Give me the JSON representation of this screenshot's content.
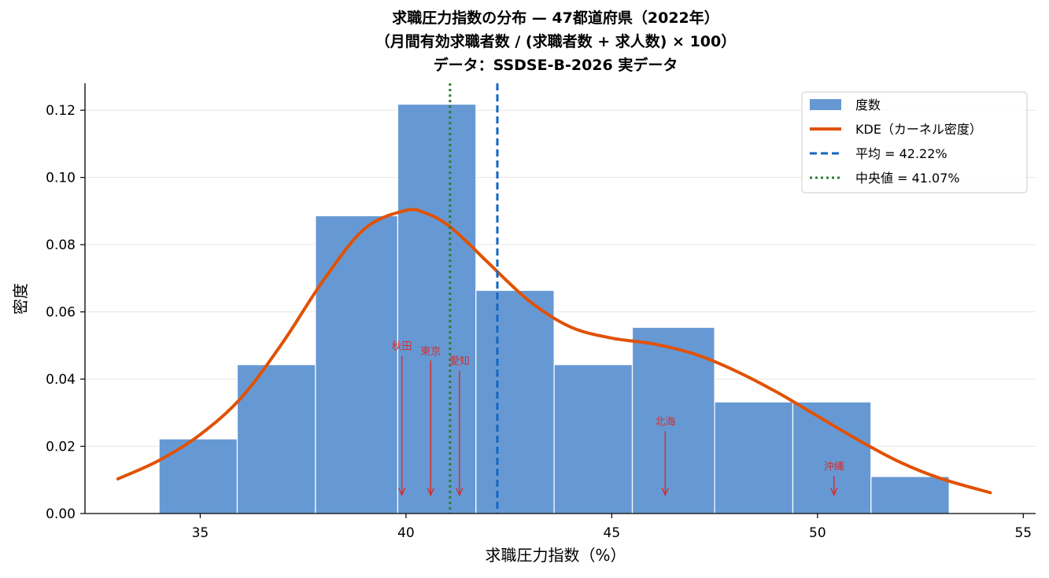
{
  "chart_data": {
    "type": "histogram",
    "title_lines": [
      "求職圧力指数の分布 — 47都道府県（2022年）",
      "（月間有効求職者数 / (求職者数 + 求人数) × 100）",
      "データ：SSDSE-B-2026 実データ"
    ],
    "xlabel": "求職圧力指数（%）",
    "ylabel": "密度",
    "xlim": [
      32.2,
      55.3
    ],
    "ylim": [
      0,
      0.128
    ],
    "xticks": [
      35,
      40,
      45,
      50,
      55
    ],
    "yticks": [
      0.0,
      0.02,
      0.04,
      0.06,
      0.08,
      0.1,
      0.12
    ],
    "ytick_labels": [
      "0.00",
      "0.02",
      "0.04",
      "0.06",
      "0.08",
      "0.10",
      "0.12"
    ],
    "grid": "y-axis only",
    "legend_position": "upper right",
    "histogram": {
      "name": "度数",
      "color": "#6699d4",
      "bins": [
        {
          "x0": 34.0,
          "x1": 35.9,
          "density": 0.0222
        },
        {
          "x0": 35.9,
          "x1": 37.8,
          "density": 0.0443
        },
        {
          "x0": 37.8,
          "x1": 39.8,
          "density": 0.0886
        },
        {
          "x0": 39.8,
          "x1": 41.7,
          "density": 0.1218
        },
        {
          "x0": 41.7,
          "x1": 43.6,
          "density": 0.0664
        },
        {
          "x0": 43.6,
          "x1": 45.5,
          "density": 0.0443
        },
        {
          "x0": 45.5,
          "x1": 47.5,
          "density": 0.0554
        },
        {
          "x0": 47.5,
          "x1": 49.4,
          "density": 0.0332
        },
        {
          "x0": 49.4,
          "x1": 51.3,
          "density": 0.0332
        },
        {
          "x0": 51.3,
          "x1": 53.2,
          "density": 0.011
        }
      ]
    },
    "kde": {
      "name": "KDE（カーネル密度）",
      "color": "#e05206",
      "x": [
        33.0,
        34.0,
        35.0,
        36.0,
        37.0,
        38.0,
        39.0,
        40.0,
        40.5,
        41.0,
        41.5,
        42.0,
        43.0,
        44.0,
        45.0,
        46.0,
        47.0,
        48.0,
        49.0,
        50.0,
        51.0,
        52.0,
        53.0,
        54.2
      ],
      "y": [
        0.0103,
        0.0158,
        0.0235,
        0.0345,
        0.0508,
        0.0695,
        0.0848,
        0.0902,
        0.0893,
        0.086,
        0.0806,
        0.0746,
        0.0632,
        0.0555,
        0.0522,
        0.0505,
        0.0475,
        0.0425,
        0.0362,
        0.029,
        0.0218,
        0.0153,
        0.0104,
        0.0062
      ]
    },
    "mean": {
      "name": "平均 = 42.22%",
      "value": 42.22,
      "color": "#1565c0"
    },
    "median": {
      "name": "中央値 = 41.07%",
      "value": 41.07,
      "color": "#2e7d32"
    },
    "annotations": [
      {
        "text": "秋田",
        "x": 39.9,
        "arrow_from_y": 0.047,
        "arrow_to_y": 0.0055,
        "text_y": 0.0488
      },
      {
        "text": "東京",
        "x": 40.6,
        "arrow_from_y": 0.0455,
        "arrow_to_y": 0.0055,
        "text_y": 0.0473
      },
      {
        "text": "愛知",
        "x": 41.3,
        "arrow_from_y": 0.0425,
        "arrow_to_y": 0.0055,
        "text_y": 0.0443
      },
      {
        "text": "北海",
        "x": 46.3,
        "arrow_from_y": 0.0245,
        "arrow_to_y": 0.0055,
        "text_y": 0.0263
      },
      {
        "text": "沖縄",
        "x": 50.4,
        "arrow_from_y": 0.0112,
        "arrow_to_y": 0.0055,
        "text_y": 0.013
      }
    ],
    "annotation_color": "#d32f2f"
  }
}
